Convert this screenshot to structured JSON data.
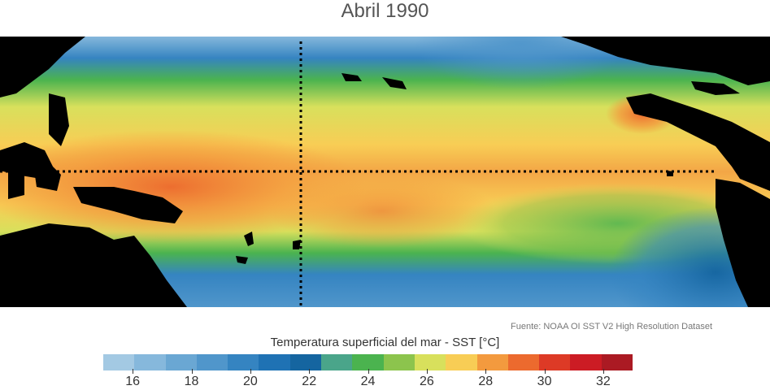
{
  "title": "Abril 1990",
  "source_note": "Fuente: NOAA OI SST V2 High Resolution Dataset",
  "colorbar": {
    "label": "Temperatura superficial del mar - SST  [°C]",
    "min": 15,
    "max": 33,
    "tick_labels": [
      "16",
      "18",
      "20",
      "22",
      "24",
      "26",
      "28",
      "30",
      "32"
    ],
    "colors": [
      "#a3c9e3",
      "#86b8dc",
      "#6aa7d3",
      "#5096cb",
      "#3584c1",
      "#1f72b4",
      "#1565a0",
      "#4aa58a",
      "#4bb34f",
      "#8cc44d",
      "#d8e05c",
      "#f8cd55",
      "#f39a3e",
      "#ec6a2e",
      "#dd3a26",
      "#cc1c24",
      "#ab1a23"
    ]
  },
  "map": {
    "region": "Tropical Pacific Ocean",
    "land_color": "#000000",
    "reference_lines": [
      "equator",
      "central-meridian"
    ]
  }
}
